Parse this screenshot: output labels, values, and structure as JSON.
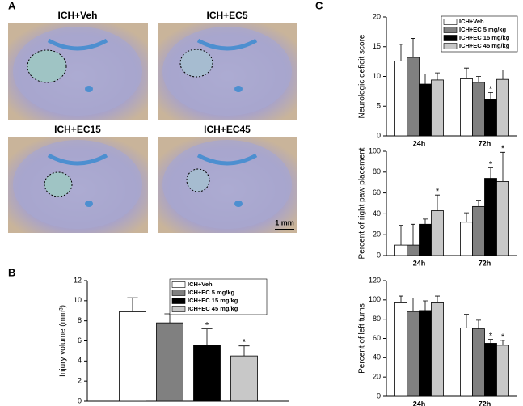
{
  "panel_labels": [
    "A",
    "B",
    "C"
  ],
  "images": [
    {
      "label": "ICH+Veh"
    },
    {
      "label": "ICH+EC5"
    },
    {
      "label": "ICH+EC15"
    },
    {
      "label": "ICH+EC45"
    }
  ],
  "scale_bar": "1 mm",
  "chart_data": [
    {
      "type": "bar",
      "y_label": "Injury volume (mm³)",
      "categories": [
        null
      ],
      "ylim": [
        0,
        12
      ],
      "yticks": [
        0,
        2,
        4,
        6,
        8,
        10,
        12
      ],
      "legend": "upper right",
      "series": [
        {
          "name": "ICH+Veh",
          "color": "#ffffff",
          "values": [
            8.9
          ],
          "errors": [
            1.4
          ],
          "marks": [
            null
          ]
        },
        {
          "name": "ICH+EC 5 mg/kg",
          "color": "#808080",
          "values": [
            7.8
          ],
          "errors": [
            0.9
          ],
          "marks": [
            null
          ]
        },
        {
          "name": "ICH+EC 15 mg/kg",
          "color": "#000000",
          "values": [
            5.6
          ],
          "errors": [
            1.6
          ],
          "marks": [
            "*"
          ]
        },
        {
          "name": "ICH+EC 45 mg/kg",
          "color": "#c8c8c8",
          "values": [
            4.5
          ],
          "errors": [
            1.0
          ],
          "marks": [
            "*"
          ]
        }
      ]
    },
    {
      "type": "bar",
      "y_label": "Neurologic deficit score",
      "categories": [
        "24h",
        "72h"
      ],
      "ylim": [
        0,
        20
      ],
      "yticks": [
        0,
        5,
        10,
        15,
        20
      ],
      "legend": "upper right",
      "series": [
        {
          "name": "ICH+Veh",
          "color": "#ffffff",
          "values": [
            12.6,
            9.6
          ],
          "errors": [
            2.8,
            1.8
          ],
          "marks": [
            null,
            null
          ]
        },
        {
          "name": "ICH+EC 5 mg/kg",
          "color": "#808080",
          "values": [
            13.2,
            9.0
          ],
          "errors": [
            3.2,
            1.0
          ],
          "marks": [
            null,
            null
          ]
        },
        {
          "name": "ICH+EC 15 mg/kg",
          "color": "#000000",
          "values": [
            8.7,
            6.1
          ],
          "errors": [
            1.7,
            1.2
          ],
          "marks": [
            null,
            "*"
          ]
        },
        {
          "name": "ICH+EC 45 mg/kg",
          "color": "#c8c8c8",
          "values": [
            9.4,
            9.5
          ],
          "errors": [
            1.2,
            1.6
          ],
          "marks": [
            null,
            null
          ]
        }
      ]
    },
    {
      "type": "bar",
      "y_label": "Percent of right paw placement",
      "categories": [
        "24h",
        "72h"
      ],
      "ylim": [
        0,
        100
      ],
      "yticks": [
        0,
        20,
        40,
        60,
        80,
        100
      ],
      "series": [
        {
          "color": "#ffffff",
          "values": [
            10,
            32
          ],
          "errors": [
            19,
            9
          ],
          "marks": [
            null,
            null
          ]
        },
        {
          "color": "#808080",
          "values": [
            10,
            47
          ],
          "errors": [
            20,
            6
          ],
          "marks": [
            null,
            null
          ]
        },
        {
          "color": "#000000",
          "values": [
            30,
            74
          ],
          "errors": [
            5,
            10
          ],
          "marks": [
            null,
            "*"
          ]
        },
        {
          "color": "#c8c8c8",
          "values": [
            43,
            71
          ],
          "errors": [
            15,
            28
          ],
          "marks": [
            "*",
            "*"
          ]
        }
      ]
    },
    {
      "type": "bar",
      "y_label": "Percent of left turns",
      "categories": [
        "24h",
        "72h"
      ],
      "ylim": [
        0,
        120
      ],
      "yticks": [
        0,
        20,
        40,
        60,
        80,
        100,
        120
      ],
      "series": [
        {
          "color": "#ffffff",
          "values": [
            97,
            71
          ],
          "errors": [
            7,
            14
          ],
          "marks": [
            null,
            null
          ]
        },
        {
          "color": "#808080",
          "values": [
            88,
            70
          ],
          "errors": [
            14,
            9
          ],
          "marks": [
            null,
            null
          ]
        },
        {
          "color": "#000000",
          "values": [
            89,
            55
          ],
          "errors": [
            10,
            4
          ],
          "marks": [
            null,
            "*"
          ]
        },
        {
          "color": "#c8c8c8",
          "values": [
            97,
            53
          ],
          "errors": [
            7,
            5
          ],
          "marks": [
            null,
            "*"
          ]
        }
      ]
    }
  ]
}
